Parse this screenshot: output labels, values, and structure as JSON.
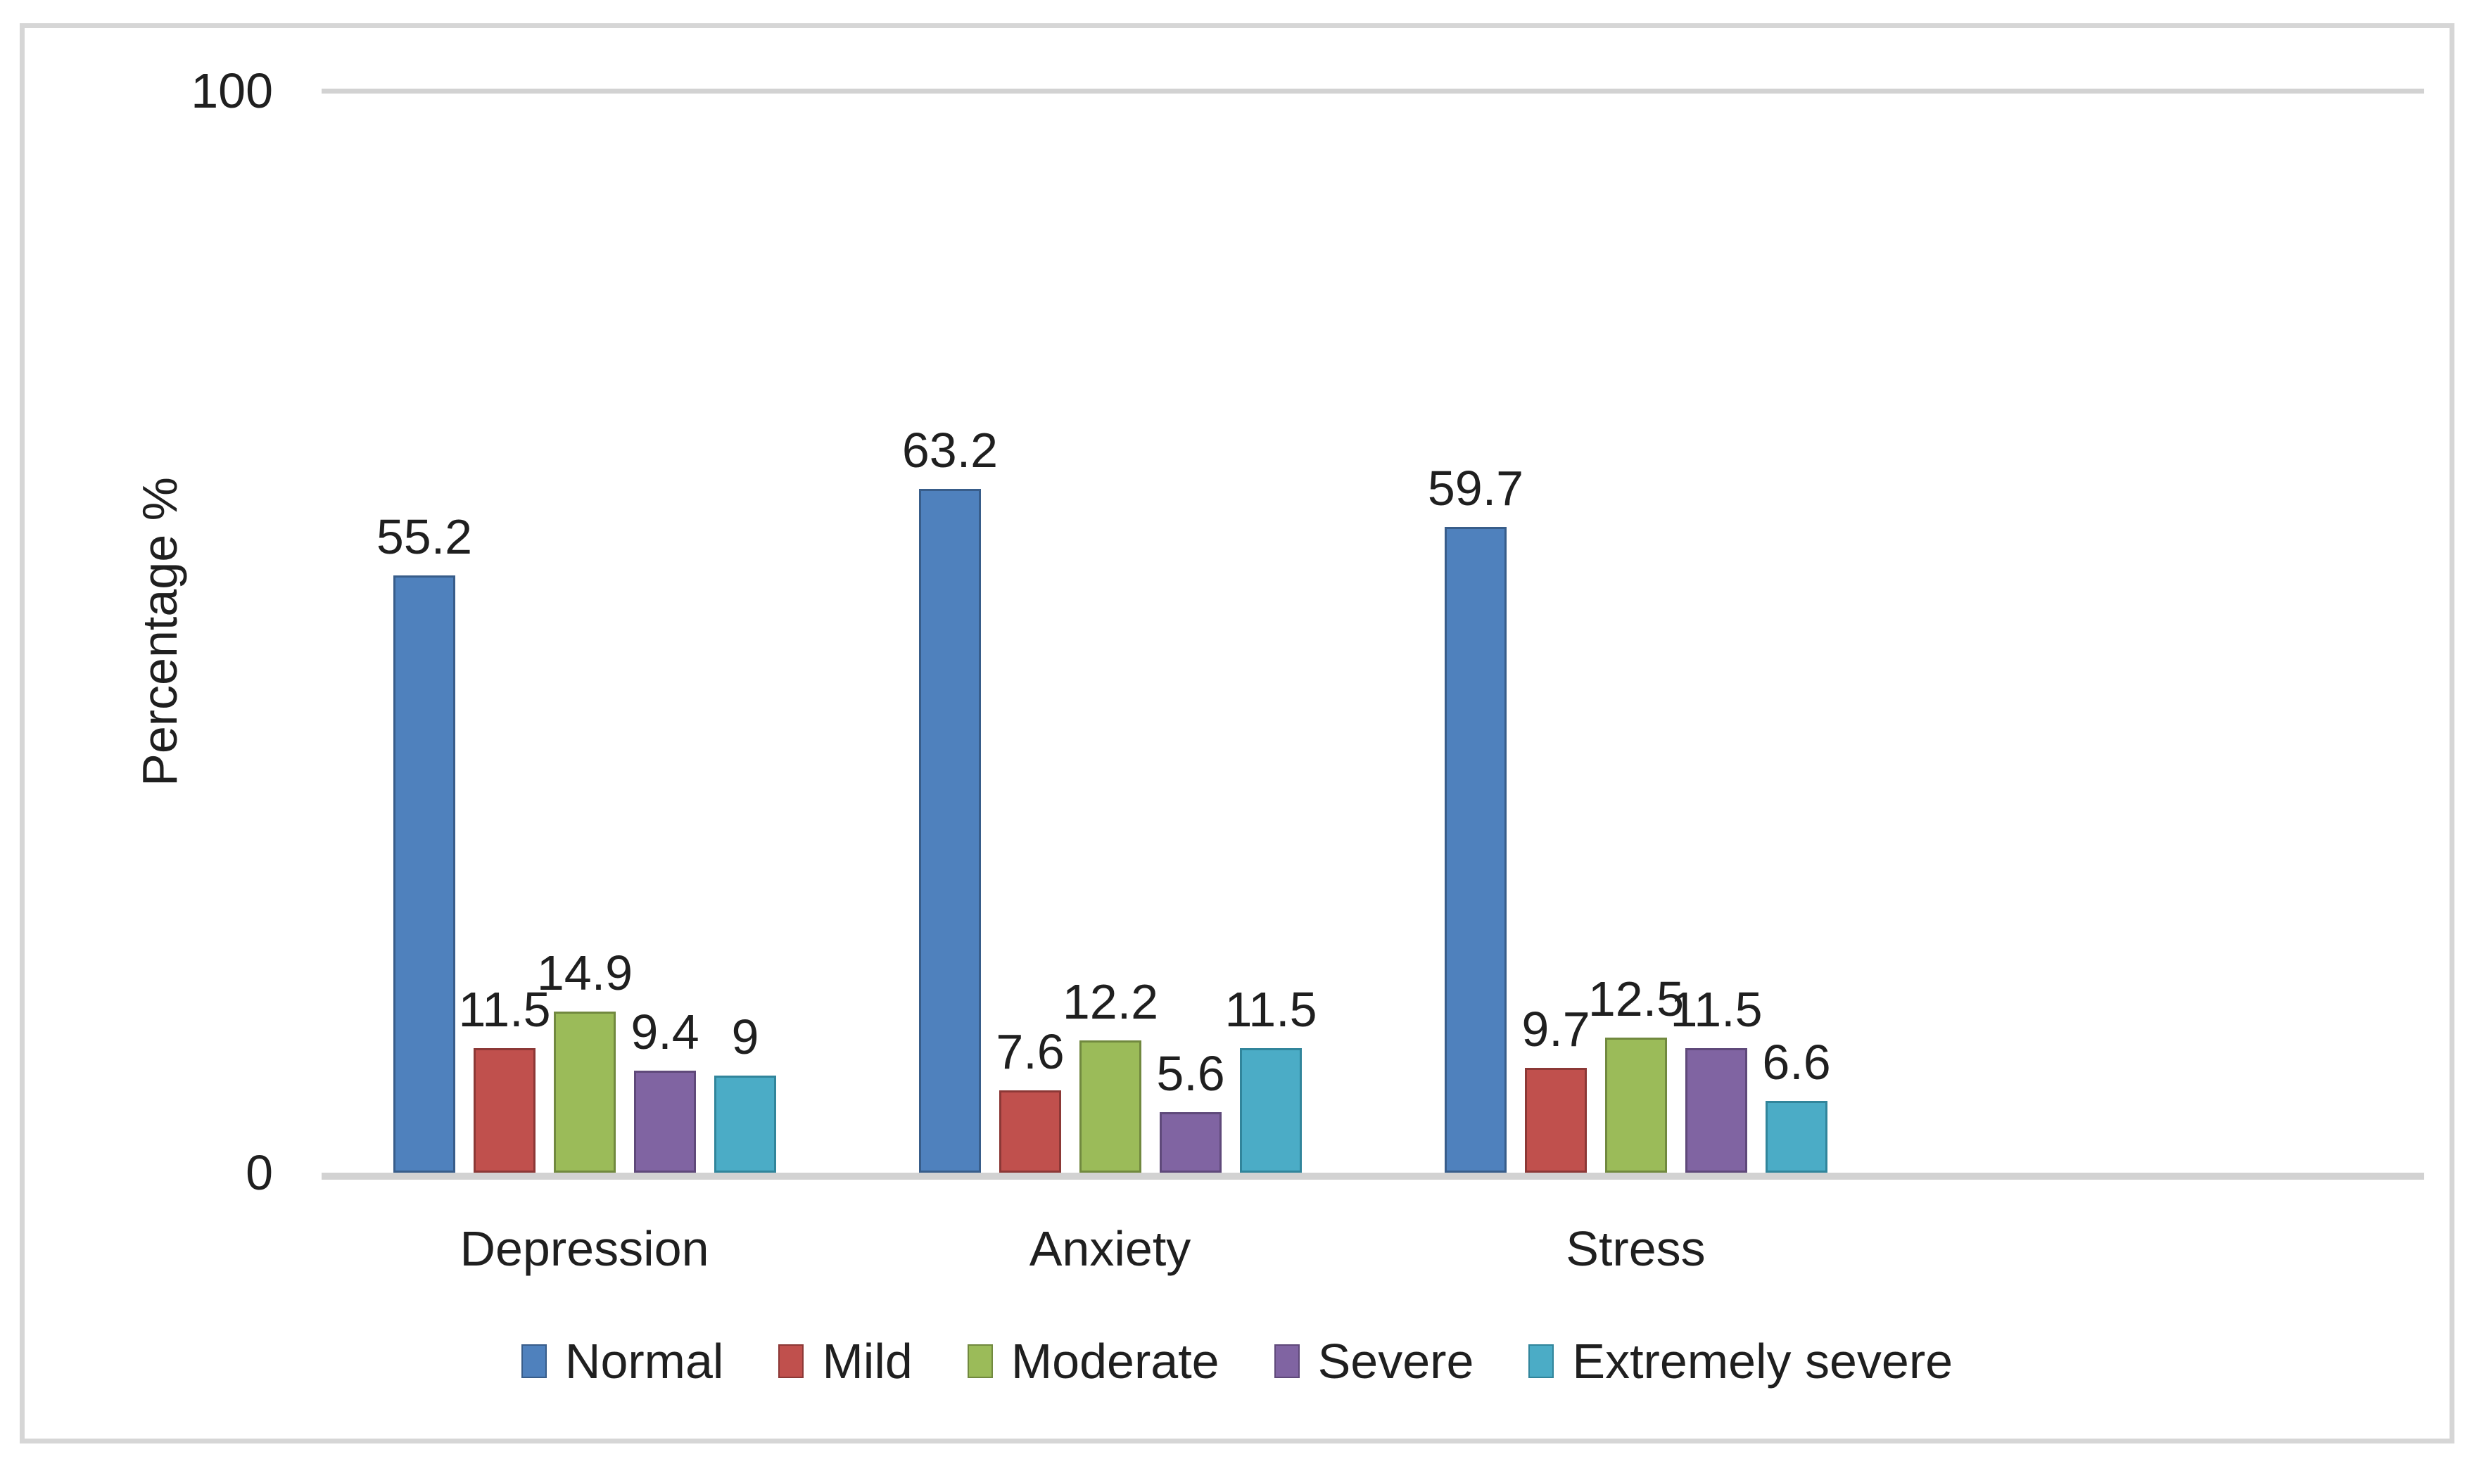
{
  "chart_data": {
    "type": "bar",
    "title": "",
    "xlabel": "",
    "ylabel": "Percentage %",
    "categories": [
      "Depression",
      "Anxiety",
      "Stress"
    ],
    "series": [
      {
        "name": "Normal",
        "color": "#4f81bd",
        "border": "#385d8a",
        "values": [
          55.2,
          63.2,
          59.7
        ],
        "labels": [
          "55.2",
          "63.2",
          "59.7"
        ]
      },
      {
        "name": "Mild",
        "color": "#c0504d",
        "border": "#8c3836",
        "values": [
          11.5,
          7.6,
          9.7
        ],
        "labels": [
          "11.5",
          "7.6",
          "9.7"
        ]
      },
      {
        "name": "Moderate",
        "color": "#9bbb59",
        "border": "#71893f",
        "values": [
          14.9,
          12.2,
          12.5
        ],
        "labels": [
          "14.9",
          "12.2",
          "12.5"
        ]
      },
      {
        "name": "Severe",
        "color": "#8064a2",
        "border": "#5f497a",
        "values": [
          9.4,
          5.6,
          11.5
        ],
        "labels": [
          "9.4",
          "5.6",
          "11.5"
        ]
      },
      {
        "name": "Extremely severe",
        "color": "#4bacc6",
        "border": "#31859b",
        "values": [
          9,
          11.5,
          6.6
        ],
        "labels": [
          "9",
          "11.5",
          "6.6"
        ]
      }
    ],
    "ylim": [
      0,
      100
    ],
    "yticks": [
      {
        "value": 0,
        "label": "0"
      },
      {
        "value": 100,
        "label": "100"
      }
    ],
    "gridlines_at": [
      100
    ],
    "legend_position": "bottom",
    "empty_trailing_slots": 1
  },
  "style": {
    "frame_border_color": "#d6d6d6",
    "grid_color": "#d2d2d2",
    "text_color": "#1f1f1f",
    "background": "#ffffff"
  }
}
